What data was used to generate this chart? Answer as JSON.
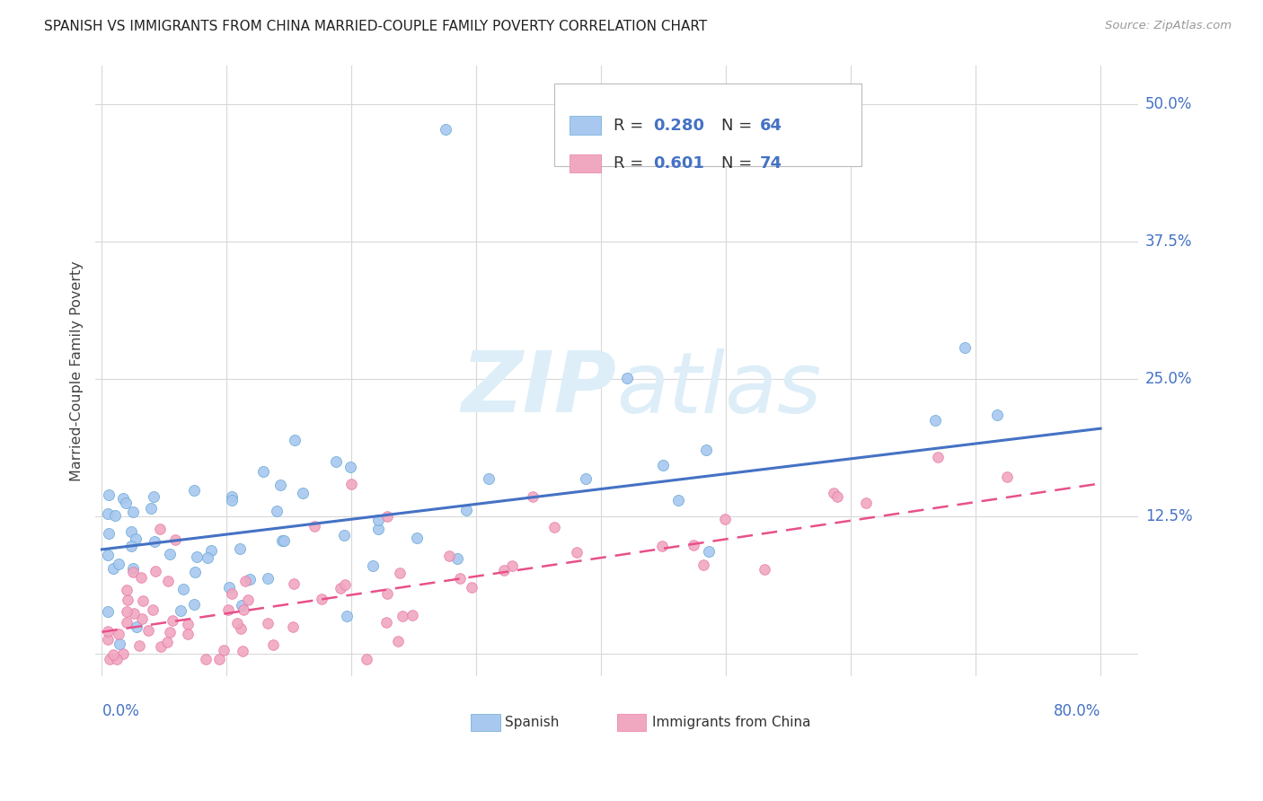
{
  "title": "SPANISH VS IMMIGRANTS FROM CHINA MARRIED-COUPLE FAMILY POVERTY CORRELATION CHART",
  "source": "Source: ZipAtlas.com",
  "ylabel": "Married-Couple Family Poverty",
  "color_blue": "#a8c8f0",
  "color_pink": "#f0a8c0",
  "color_blue_edge": "#6aaad4",
  "color_pink_edge": "#e87aaa",
  "color_blue_line": "#4472c4",
  "color_pink_line": "#e8508a",
  "watermark_color": "#ddeef8",
  "grid_color": "#d8d8d8",
  "ytick_vals": [
    0.0,
    0.125,
    0.25,
    0.375,
    0.5
  ],
  "ytick_labels": [
    "",
    "12.5%",
    "25.0%",
    "37.5%",
    "50.0%"
  ],
  "xtick_vals": [
    0.0,
    0.1,
    0.2,
    0.3,
    0.4,
    0.5,
    0.6,
    0.7,
    0.8
  ],
  "xlim": [
    -0.005,
    0.83
  ],
  "ylim": [
    -0.02,
    0.535
  ],
  "legend_r1": "R = 0.280",
  "legend_n1": "N = 64",
  "legend_r2": "R = 0.601",
  "legend_n2": "N = 74"
}
